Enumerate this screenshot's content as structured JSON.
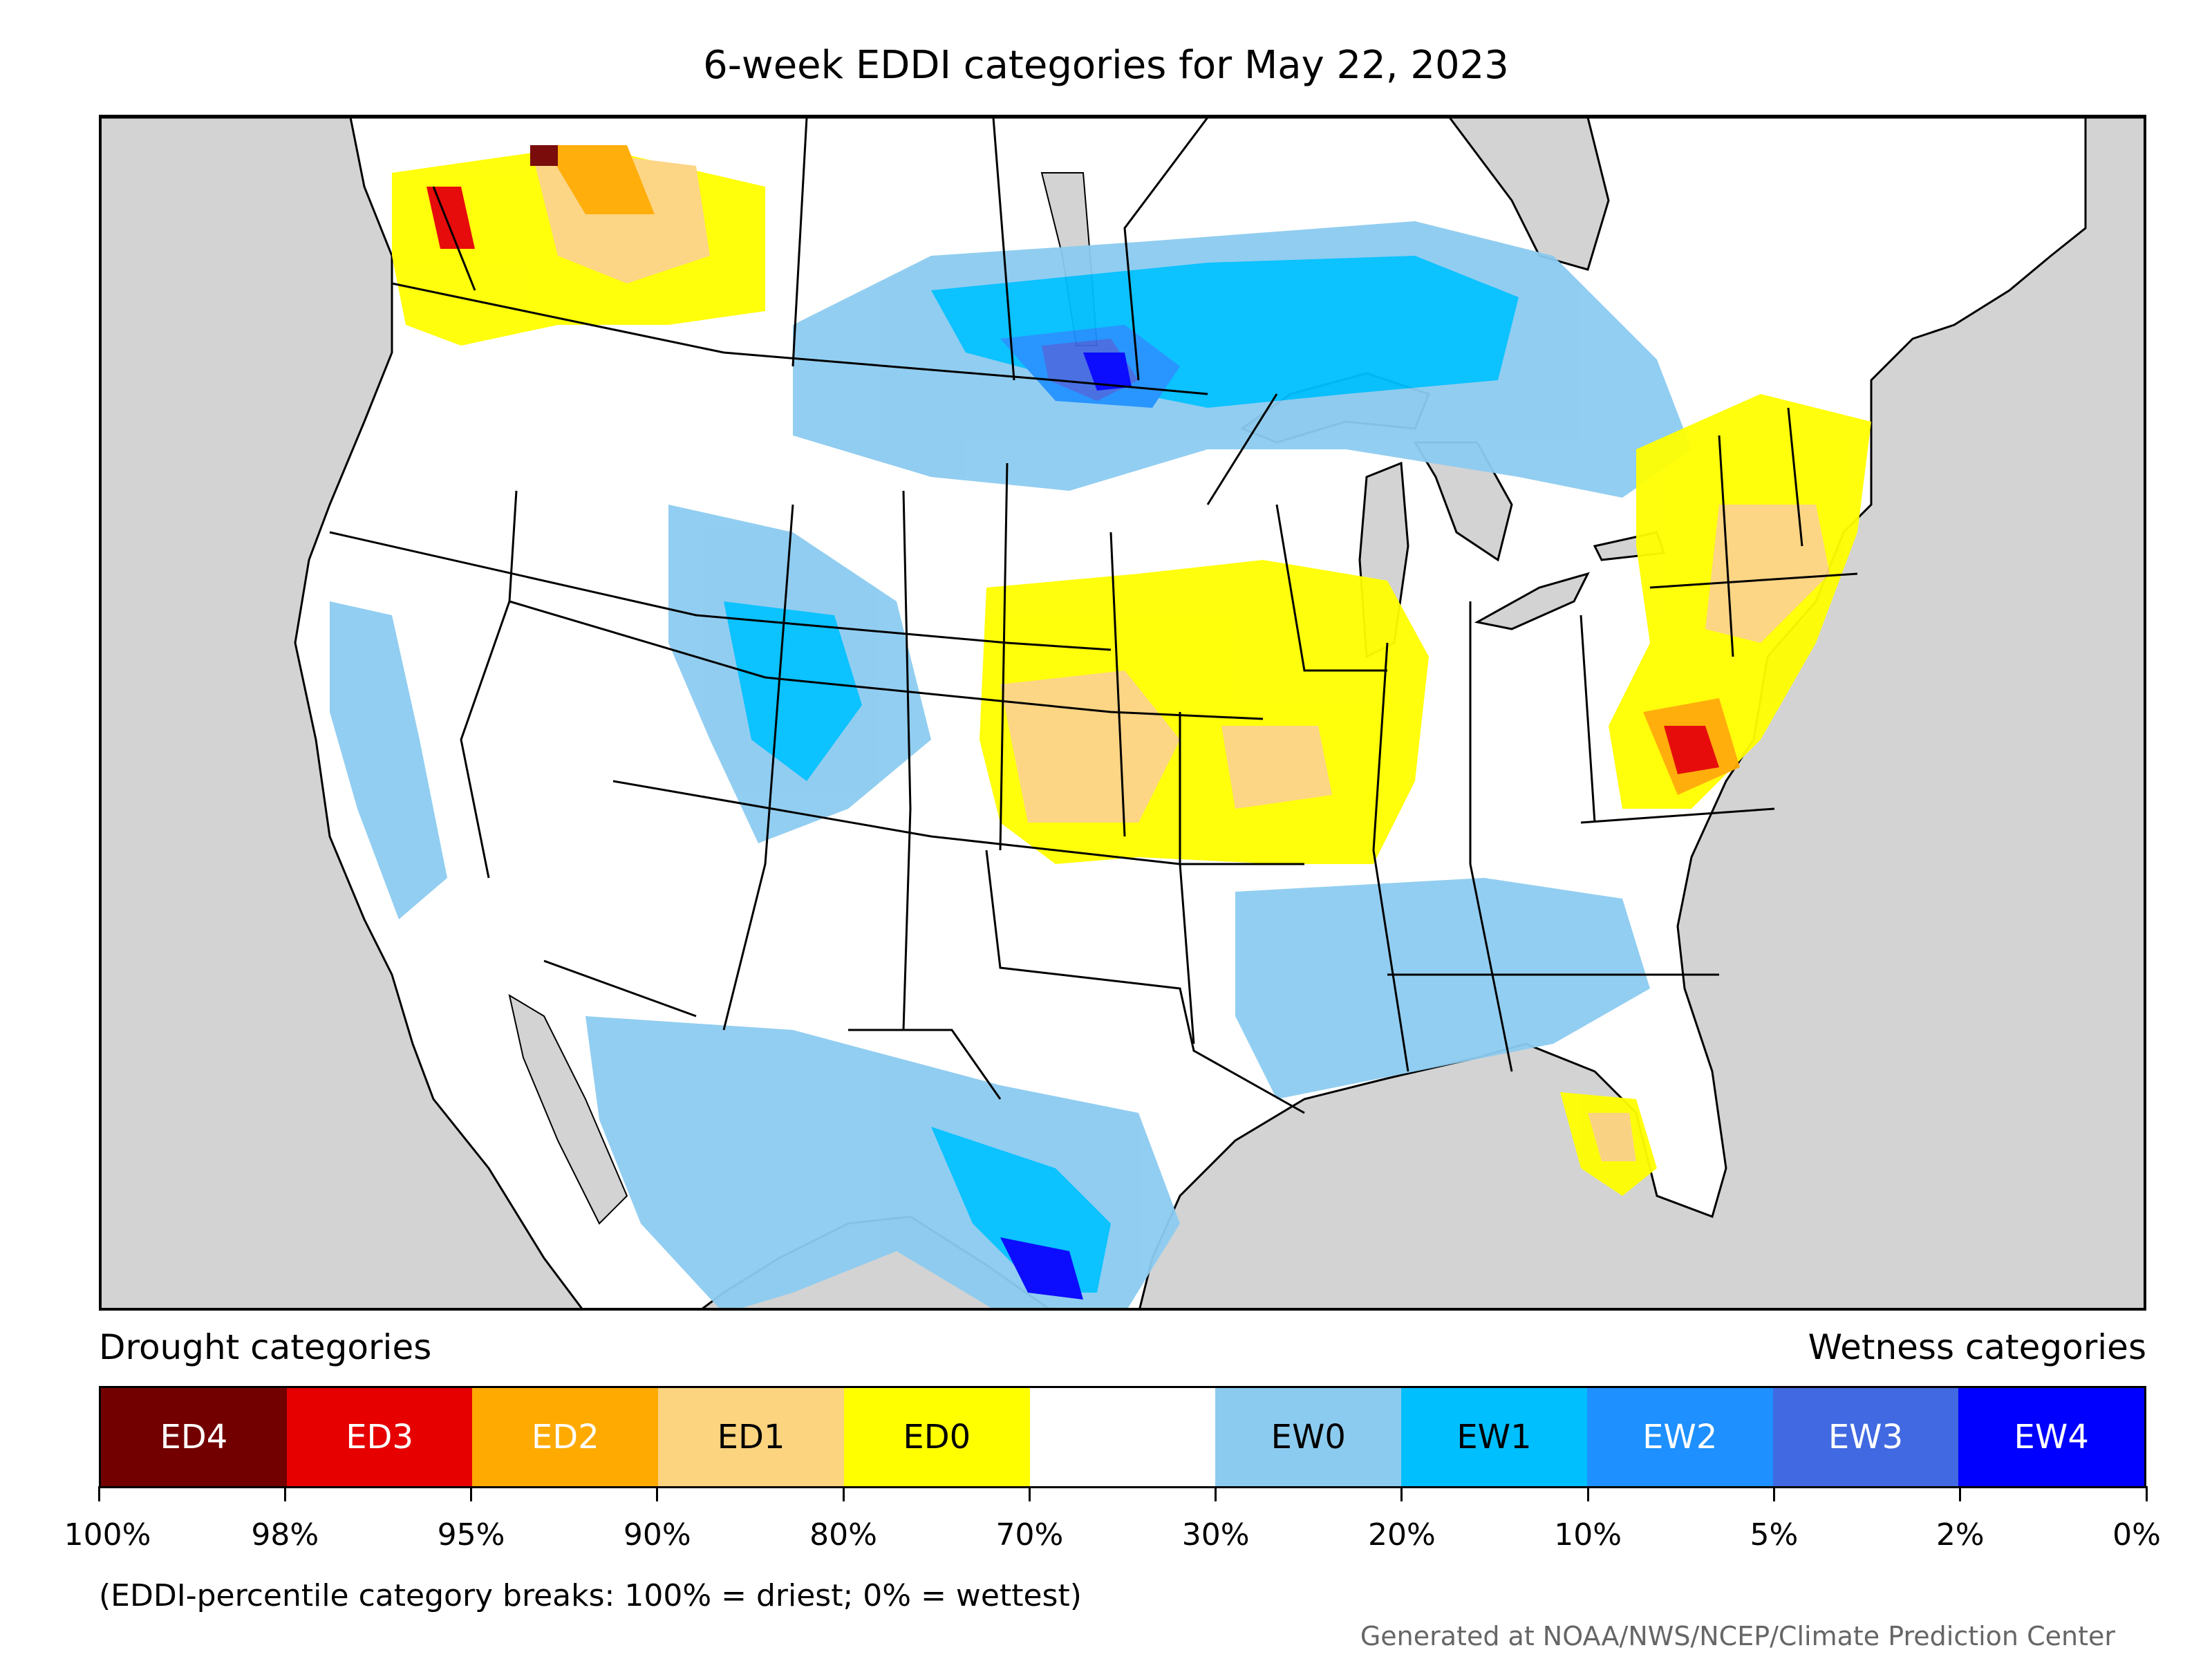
{
  "title": "6-week EDDI categories for May 22, 2023",
  "legend": {
    "drought_heading": "Drought categories",
    "wetness_heading": "Wetness categories",
    "categories": [
      {
        "label": "ED4",
        "color": "#730000",
        "text_color": "#ffffff"
      },
      {
        "label": "ED3",
        "color": "#e60000",
        "text_color": "#ffffff"
      },
      {
        "label": "ED2",
        "color": "#ffaa00",
        "text_color": "#ffffff"
      },
      {
        "label": "ED1",
        "color": "#fcd37f",
        "text_color": "#000000"
      },
      {
        "label": "ED0",
        "color": "#ffff00",
        "text_color": "#000000"
      },
      {
        "label": "",
        "color": "#ffffff",
        "text_color": "#000000"
      },
      {
        "label": "EW0",
        "color": "#8ccbf0",
        "text_color": "#000000"
      },
      {
        "label": "EW1",
        "color": "#00bfff",
        "text_color": "#000000"
      },
      {
        "label": "EW2",
        "color": "#1e90ff",
        "text_color": "#ffffff"
      },
      {
        "label": "EW3",
        "color": "#4169e1",
        "text_color": "#ffffff"
      },
      {
        "label": "EW4",
        "color": "#0000ff",
        "text_color": "#ffffff"
      }
    ],
    "tick_labels": [
      "100%",
      "98%",
      "95%",
      "90%",
      "80%",
      "70%",
      "30%",
      "20%",
      "10%",
      "5%",
      "2%",
      "0%"
    ]
  },
  "note": "(EDDI-percentile category breaks: 100% = driest; 0% = wettest)",
  "credit": "Generated at NOAA/NWS/NCEP/Climate Prediction Center",
  "colors": {
    "land": "#ffffff",
    "ocean": "#d3d3d3",
    "border": "#000000"
  }
}
